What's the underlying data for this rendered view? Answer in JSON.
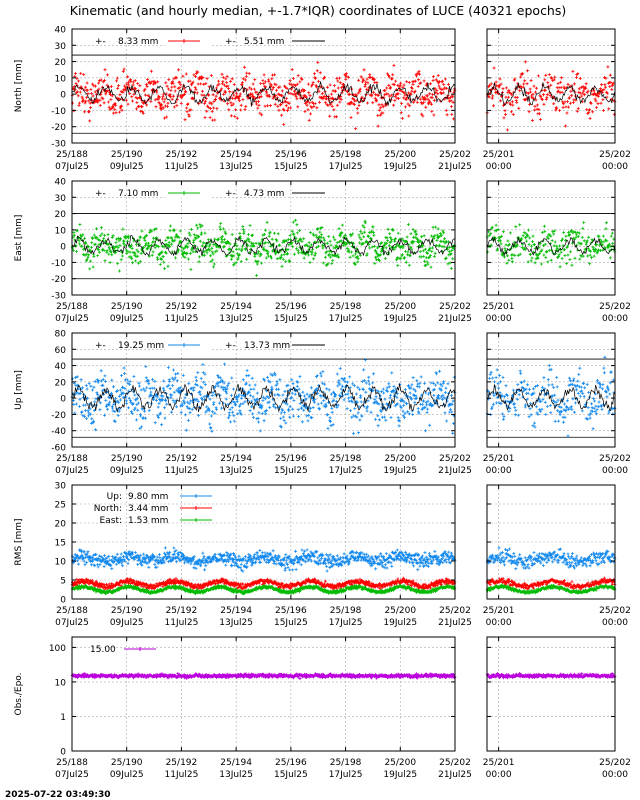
{
  "title": "Kinematic (and hourly median, +-1.7*IQR) coordinates of LUCE (40321 epochs)",
  "timestamp": "2025-07-22 03:49:30",
  "colors": {
    "north": "#ff0000",
    "east": "#00bb00",
    "up": "#1188ee",
    "obs": "#bb00dd",
    "median": "#000000",
    "grid": "#aaaaaa"
  },
  "x_axes": {
    "main": {
      "range": [
        188,
        202
      ],
      "ticks": [
        {
          "v": 188,
          "top": "25/188",
          "bottom": "07Jul25"
        },
        {
          "v": 190,
          "top": "25/190",
          "bottom": "09Jul25"
        },
        {
          "v": 192,
          "top": "25/192",
          "bottom": "11Jul25"
        },
        {
          "v": 194,
          "top": "25/194",
          "bottom": "13Jul25"
        },
        {
          "v": 196,
          "top": "25/196",
          "bottom": "15Jul25"
        },
        {
          "v": 198,
          "top": "25/198",
          "bottom": "17Jul25"
        },
        {
          "v": 200,
          "top": "25/200",
          "bottom": "19Jul25"
        },
        {
          "v": 202,
          "top": "25/202",
          "bottom": "21Jul25"
        }
      ]
    },
    "zoom": {
      "range": [
        200.9,
        202
      ],
      "ticks": [
        {
          "v": 201,
          "top": "25/201",
          "bottom": "00:00"
        },
        {
          "v": 202,
          "top": "25/202",
          "bottom": "00:00"
        }
      ]
    }
  },
  "chart_data": [
    {
      "type": "scatter",
      "id": "north",
      "ylabel": "North [mm]",
      "ylim": [
        -30,
        40
      ],
      "yticks": [
        -30,
        -20,
        -10,
        0,
        10,
        20,
        30,
        40
      ],
      "series_color": "north",
      "noise": 8.33,
      "median_noise": 5.51,
      "ref_lines": [
        -24,
        24
      ],
      "legend": [
        {
          "prefix": "+-",
          "value": "8.33 mm",
          "style": "points"
        },
        {
          "prefix": "+-",
          "value": "5.51 mm",
          "style": "line"
        }
      ]
    },
    {
      "type": "scatter",
      "id": "east",
      "ylabel": "East [mm]",
      "ylim": [
        -30,
        40
      ],
      "yticks": [
        -30,
        -20,
        -10,
        0,
        10,
        20,
        30,
        40
      ],
      "series_color": "east",
      "noise": 7.1,
      "median_noise": 4.73,
      "ref_lines": [
        -20,
        20
      ],
      "legend": [
        {
          "prefix": "+-",
          "value": "7.10 mm",
          "style": "points"
        },
        {
          "prefix": "+-",
          "value": "4.73 mm",
          "style": "line"
        }
      ]
    },
    {
      "type": "scatter",
      "id": "up",
      "ylabel": "Up [mm]",
      "ylim": [
        -60,
        80
      ],
      "yticks": [
        -60,
        -40,
        -20,
        0,
        20,
        40,
        60,
        80
      ],
      "series_color": "up",
      "noise": 19.25,
      "median_noise": 13.73,
      "ref_lines": [
        -48,
        48
      ],
      "legend": [
        {
          "prefix": "+-",
          "value": "19.25 mm",
          "style": "points"
        },
        {
          "prefix": "+-",
          "value": "13.73 mm",
          "style": "line"
        }
      ]
    },
    {
      "type": "scatter",
      "id": "rms",
      "ylabel": "RMS [mm]",
      "ylim": [
        0,
        30
      ],
      "yticks": [
        0,
        5,
        10,
        15,
        20,
        25,
        30
      ],
      "legend": [
        {
          "label": "Up:",
          "value": "9.80 mm",
          "color": "up"
        },
        {
          "label": "North:",
          "value": "3.44 mm",
          "color": "north"
        },
        {
          "label": "East:",
          "value": "1.53 mm",
          "color": "east"
        }
      ],
      "series": [
        {
          "name": "Up",
          "color": "up",
          "mean": 10.5
        },
        {
          "name": "North",
          "color": "north",
          "mean": 4.0
        },
        {
          "name": "East",
          "color": "east",
          "mean": 2.5
        }
      ]
    },
    {
      "type": "scatter",
      "id": "obs",
      "ylabel": "Obs./Epo.",
      "yscale": "log",
      "ylim": [
        0.1,
        200
      ],
      "yticks": [
        {
          "v": 1,
          "label": "1"
        },
        {
          "v": 10,
          "label": "10"
        },
        {
          "v": 100,
          "label": "100"
        }
      ],
      "ybottom_label": "0",
      "series_color": "obs",
      "mean": 15,
      "legend": [
        {
          "value": "15.00",
          "style": "points"
        }
      ]
    }
  ]
}
